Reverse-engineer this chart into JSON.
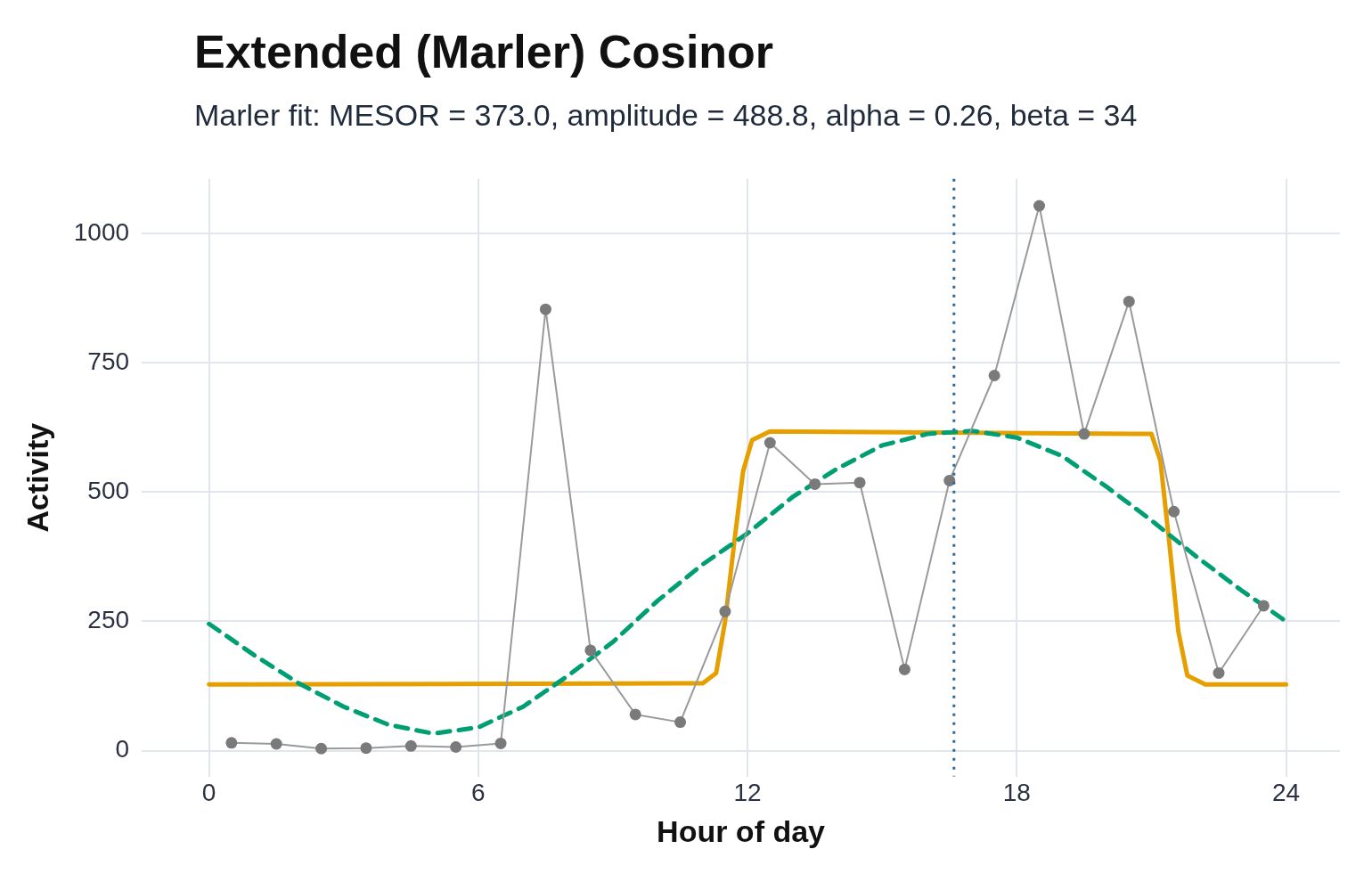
{
  "chart_data": {
    "type": "line",
    "title": "Extended (Marler) Cosinor",
    "subtitle": "Marler fit: MESOR = 373.0, amplitude = 488.8, alpha = 0.26, beta = 34",
    "xlabel": "Hour of day",
    "ylabel": "Activity",
    "xlim": [
      -1.5,
      25.2
    ],
    "xticks": [
      0,
      6,
      12,
      18,
      24
    ],
    "ylim": [
      -50,
      1105
    ],
    "yticks": [
      0,
      250,
      500,
      750,
      1000
    ],
    "grid": true,
    "legend": false,
    "series": [
      {
        "color": "#7a7a7a",
        "marker": "circle",
        "line_style": "solid",
        "x": [
          0.5,
          1.5,
          2.5,
          3.5,
          4.5,
          5.5,
          6.5,
          7.5,
          8.5,
          9.5,
          10.5,
          11.5,
          12.5,
          13.5,
          14.5,
          15.5,
          16.5,
          17.5,
          18.5,
          19.5,
          20.5,
          21.5,
          22.5,
          23.5
        ],
        "values": [
          15,
          13,
          4,
          5,
          9,
          7,
          14,
          853,
          194,
          70,
          55,
          269,
          595,
          515,
          518,
          157,
          522,
          725,
          1053,
          612,
          868,
          462,
          150,
          280
        ]
      },
      {
        "color": "#009e73",
        "marker": "none",
        "line_style": "dashed",
        "x": [
          0,
          1,
          2,
          3,
          4,
          5,
          6,
          7,
          8,
          9,
          10,
          11,
          12,
          13,
          14,
          15,
          16,
          17,
          18,
          19,
          20,
          21,
          22,
          23,
          24
        ],
        "values": [
          245,
          185,
          130,
          85,
          50,
          33,
          45,
          85,
          145,
          210,
          290,
          360,
          420,
          490,
          545,
          590,
          612,
          618,
          605,
          570,
          510,
          445,
          375,
          310,
          250
        ]
      },
      {
        "color": "#e69f00",
        "marker": "none",
        "line_style": "solid",
        "x": [
          0,
          11,
          11.3,
          11.5,
          11.7,
          11.9,
          12.1,
          12.5,
          21,
          21.2,
          21.4,
          21.6,
          21.8,
          22.2,
          24
        ],
        "values": [
          128,
          130,
          150,
          250,
          400,
          540,
          600,
          617,
          612,
          560,
          400,
          230,
          145,
          128,
          128
        ]
      }
    ],
    "ref_lines": [
      {
        "axis": "x",
        "value": 16.6,
        "color": "#2c6a99",
        "line_style": "dotted"
      }
    ]
  }
}
